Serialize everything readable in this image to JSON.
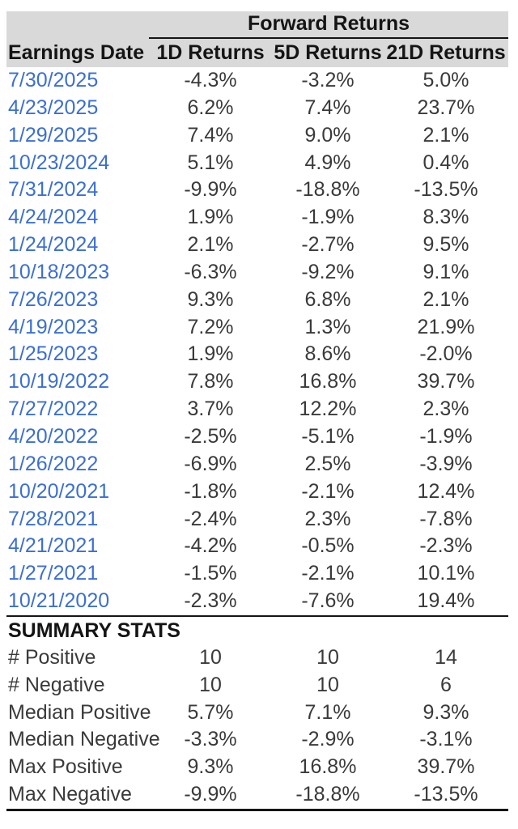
{
  "colors": {
    "header_bg": "#d9d9d9",
    "header_text": "#141414",
    "value_text": "#3a3a3a",
    "date_text": "#3b6fd5",
    "rule": "#151515"
  },
  "table": {
    "group_header": "Forward Returns",
    "columns": [
      "Earnings Date",
      "1D Returns",
      "5D Returns",
      "21D Returns"
    ],
    "rows": [
      {
        "date": "7/30/2025",
        "d1": "-4.3%",
        "d5": "-3.2%",
        "d21": "5.0%"
      },
      {
        "date": "4/23/2025",
        "d1": "6.2%",
        "d5": "7.4%",
        "d21": "23.7%"
      },
      {
        "date": "1/29/2025",
        "d1": "7.4%",
        "d5": "9.0%",
        "d21": "2.1%"
      },
      {
        "date": "10/23/2024",
        "d1": "5.1%",
        "d5": "4.9%",
        "d21": "0.4%"
      },
      {
        "date": "7/31/2024",
        "d1": "-9.9%",
        "d5": "-18.8%",
        "d21": "-13.5%"
      },
      {
        "date": "4/24/2024",
        "d1": "1.9%",
        "d5": "-1.9%",
        "d21": "8.3%"
      },
      {
        "date": "1/24/2024",
        "d1": "2.1%",
        "d5": "-2.7%",
        "d21": "9.5%"
      },
      {
        "date": "10/18/2023",
        "d1": "-6.3%",
        "d5": "-9.2%",
        "d21": "9.1%"
      },
      {
        "date": "7/26/2023",
        "d1": "9.3%",
        "d5": "6.8%",
        "d21": "2.1%"
      },
      {
        "date": "4/19/2023",
        "d1": "7.2%",
        "d5": "1.3%",
        "d21": "21.9%"
      },
      {
        "date": "1/25/2023",
        "d1": "1.9%",
        "d5": "8.6%",
        "d21": "-2.0%"
      },
      {
        "date": "10/19/2022",
        "d1": "7.8%",
        "d5": "16.8%",
        "d21": "39.7%"
      },
      {
        "date": "7/27/2022",
        "d1": "3.7%",
        "d5": "12.2%",
        "d21": "2.3%"
      },
      {
        "date": "4/20/2022",
        "d1": "-2.5%",
        "d5": "-5.1%",
        "d21": "-1.9%"
      },
      {
        "date": "1/26/2022",
        "d1": "-6.9%",
        "d5": "2.5%",
        "d21": "-3.9%"
      },
      {
        "date": "10/20/2021",
        "d1": "-1.8%",
        "d5": "-2.1%",
        "d21": "12.4%"
      },
      {
        "date": "7/28/2021",
        "d1": "-2.4%",
        "d5": "2.3%",
        "d21": "-7.8%"
      },
      {
        "date": "4/21/2021",
        "d1": "-4.2%",
        "d5": "-0.5%",
        "d21": "-2.3%"
      },
      {
        "date": "1/27/2021",
        "d1": "-1.5%",
        "d5": "-2.1%",
        "d21": "10.1%"
      },
      {
        "date": "10/21/2020",
        "d1": "-2.3%",
        "d5": "-7.6%",
        "d21": "19.4%"
      }
    ],
    "summary_title": "SUMMARY STATS",
    "summary_rows": [
      {
        "label": "# Positive",
        "d1": "10",
        "d5": "10",
        "d21": "14"
      },
      {
        "label": "# Negative",
        "d1": "10",
        "d5": "10",
        "d21": "6"
      },
      {
        "label": "Median Positive",
        "d1": "5.7%",
        "d5": "7.1%",
        "d21": "9.3%"
      },
      {
        "label": "Median Negative",
        "d1": "-3.3%",
        "d5": "-2.9%",
        "d21": "-3.1%"
      },
      {
        "label": "Max Positive",
        "d1": "9.3%",
        "d5": "16.8%",
        "d21": "39.7%"
      },
      {
        "label": "Max Negative",
        "d1": "-9.9%",
        "d5": "-18.8%",
        "d21": "-13.5%"
      }
    ]
  }
}
